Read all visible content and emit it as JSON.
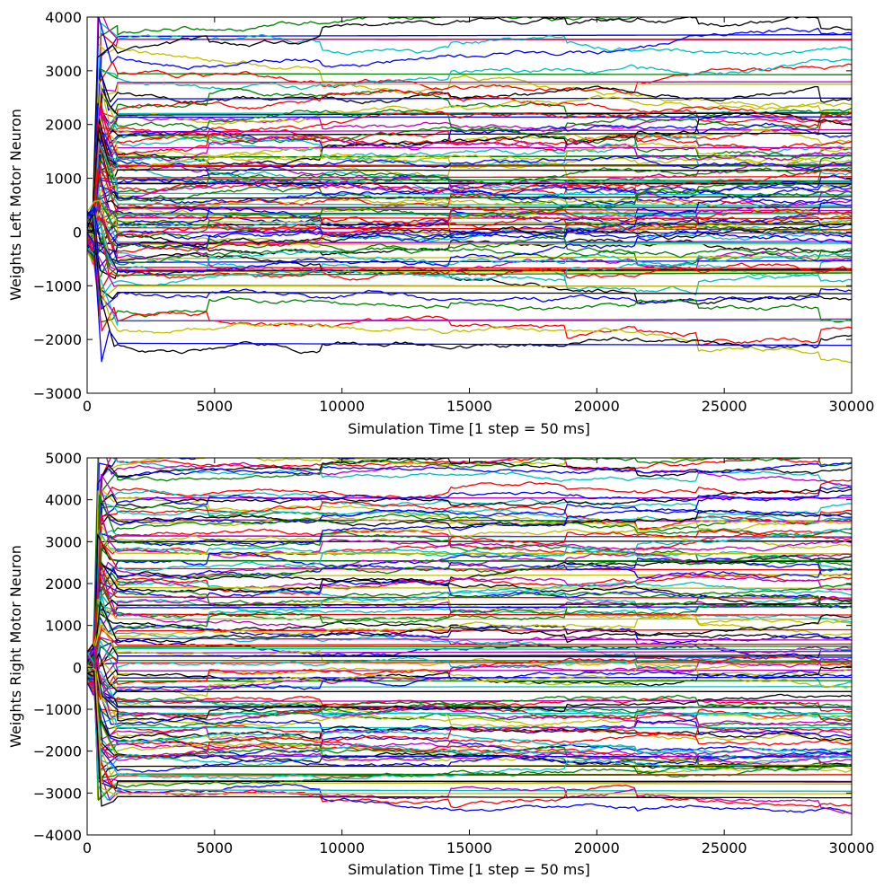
{
  "chart_data": [
    {
      "type": "line",
      "xlabel": "Simulation Time [1 step = 50 ms]",
      "ylabel": "Weights Left Motor Neuron",
      "xlim": [
        0,
        30000
      ],
      "ylim": [
        -3000,
        4000
      ],
      "xticks": [
        0,
        5000,
        10000,
        15000,
        20000,
        25000,
        30000
      ],
      "yticks": [
        -3000,
        -2000,
        -1000,
        0,
        1000,
        2000,
        3000,
        4000
      ],
      "xtick_labels": [
        "0",
        "5000",
        "10000",
        "15000",
        "20000",
        "25000",
        "30000"
      ],
      "ytick_labels": [
        "−3000",
        "−2000",
        "−1000",
        "0",
        "1000",
        "2000",
        "3000",
        "4000"
      ],
      "grid": false,
      "legend": "none",
      "n_series": 120,
      "palette": [
        "#0000ff",
        "#008000",
        "#ff0000",
        "#00bfbf",
        "#bf00bf",
        "#bfbf00",
        "#000000"
      ],
      "spike_until": 1000,
      "final_values": [
        3700,
        3600,
        3550,
        3350,
        2950,
        2800,
        2700,
        2400,
        2300,
        2150,
        2100,
        2000,
        1900,
        1850,
        1750,
        1600,
        1550,
        1450,
        1400,
        1350,
        1300,
        1250,
        1200,
        1150,
        1100,
        1000,
        950,
        850,
        800,
        750,
        650,
        600,
        500,
        450,
        400,
        300,
        250,
        200,
        150,
        100,
        50,
        -50,
        -100,
        -150,
        -250,
        -300,
        -350,
        -450,
        -500,
        -600,
        -650,
        -700,
        -800,
        -900,
        -1000,
        -1100,
        -1700,
        -1700,
        -2050,
        -2150
      ]
    },
    {
      "type": "line",
      "xlabel": "Simulation Time [1 step = 50 ms]",
      "ylabel": "Weights Right Motor Neuron",
      "xlim": [
        0,
        30000
      ],
      "ylim": [
        -4000,
        5000
      ],
      "xticks": [
        0,
        5000,
        10000,
        15000,
        20000,
        25000,
        30000
      ],
      "yticks": [
        -4000,
        -3000,
        -2000,
        -1000,
        0,
        1000,
        2000,
        3000,
        4000,
        5000
      ],
      "xtick_labels": [
        "0",
        "5000",
        "10000",
        "15000",
        "20000",
        "25000",
        "30000"
      ],
      "ytick_labels": [
        "−4000",
        "−3000",
        "−2000",
        "−1000",
        "0",
        "1000",
        "2000",
        "3000",
        "4000",
        "5000"
      ],
      "grid": false,
      "legend": "none",
      "n_series": 140,
      "palette": [
        "#0000ff",
        "#008000",
        "#ff0000",
        "#00bfbf",
        "#bf00bf",
        "#bfbf00",
        "#000000"
      ],
      "spike_until": 1000,
      "final_values": [
        5000,
        4900,
        4650,
        4300,
        4000,
        3850,
        3600,
        3400,
        3200,
        3000,
        2900,
        2700,
        2500,
        2300,
        2100,
        2000,
        1900,
        1700,
        1550,
        1400,
        1250,
        1050,
        850,
        650,
        500,
        350,
        200,
        0,
        -200,
        -400,
        -550,
        -700,
        -850,
        -1000,
        -1150,
        -1300,
        -1450,
        -1600,
        -1750,
        -1900,
        -2050,
        -2200,
        -2400,
        -2550,
        -2700,
        -2850,
        -3000,
        -3200
      ]
    }
  ]
}
